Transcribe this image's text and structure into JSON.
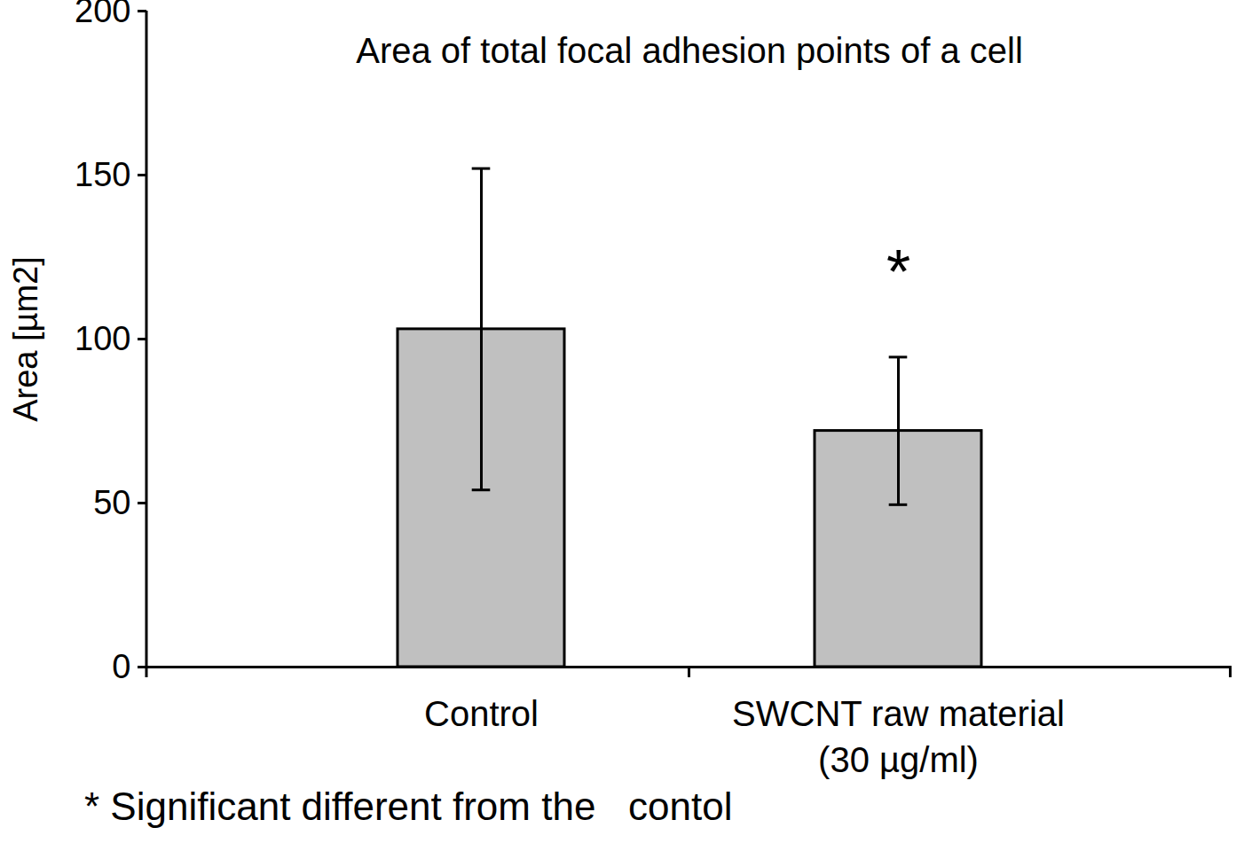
{
  "chart_data": {
    "type": "bar",
    "title": "Area of total focal adhesion points of a cell",
    "y_label": "Area [µm2]",
    "categories": [
      "Control",
      "SWCNT raw material\n(30 µg/ml)"
    ],
    "values": [
      103,
      72
    ],
    "errors": [
      49,
      22.5
    ],
    "color": "#c0c0c0",
    "ylim": [
      0,
      200
    ],
    "yticks": [
      0,
      50,
      100,
      150,
      200
    ],
    "grid": false,
    "annotations": [
      {
        "text": "*",
        "category": "SWCNT raw material\n(30 µg/ml)",
        "y": 120
      }
    ],
    "footnote": "* Significant different from the   contol"
  }
}
